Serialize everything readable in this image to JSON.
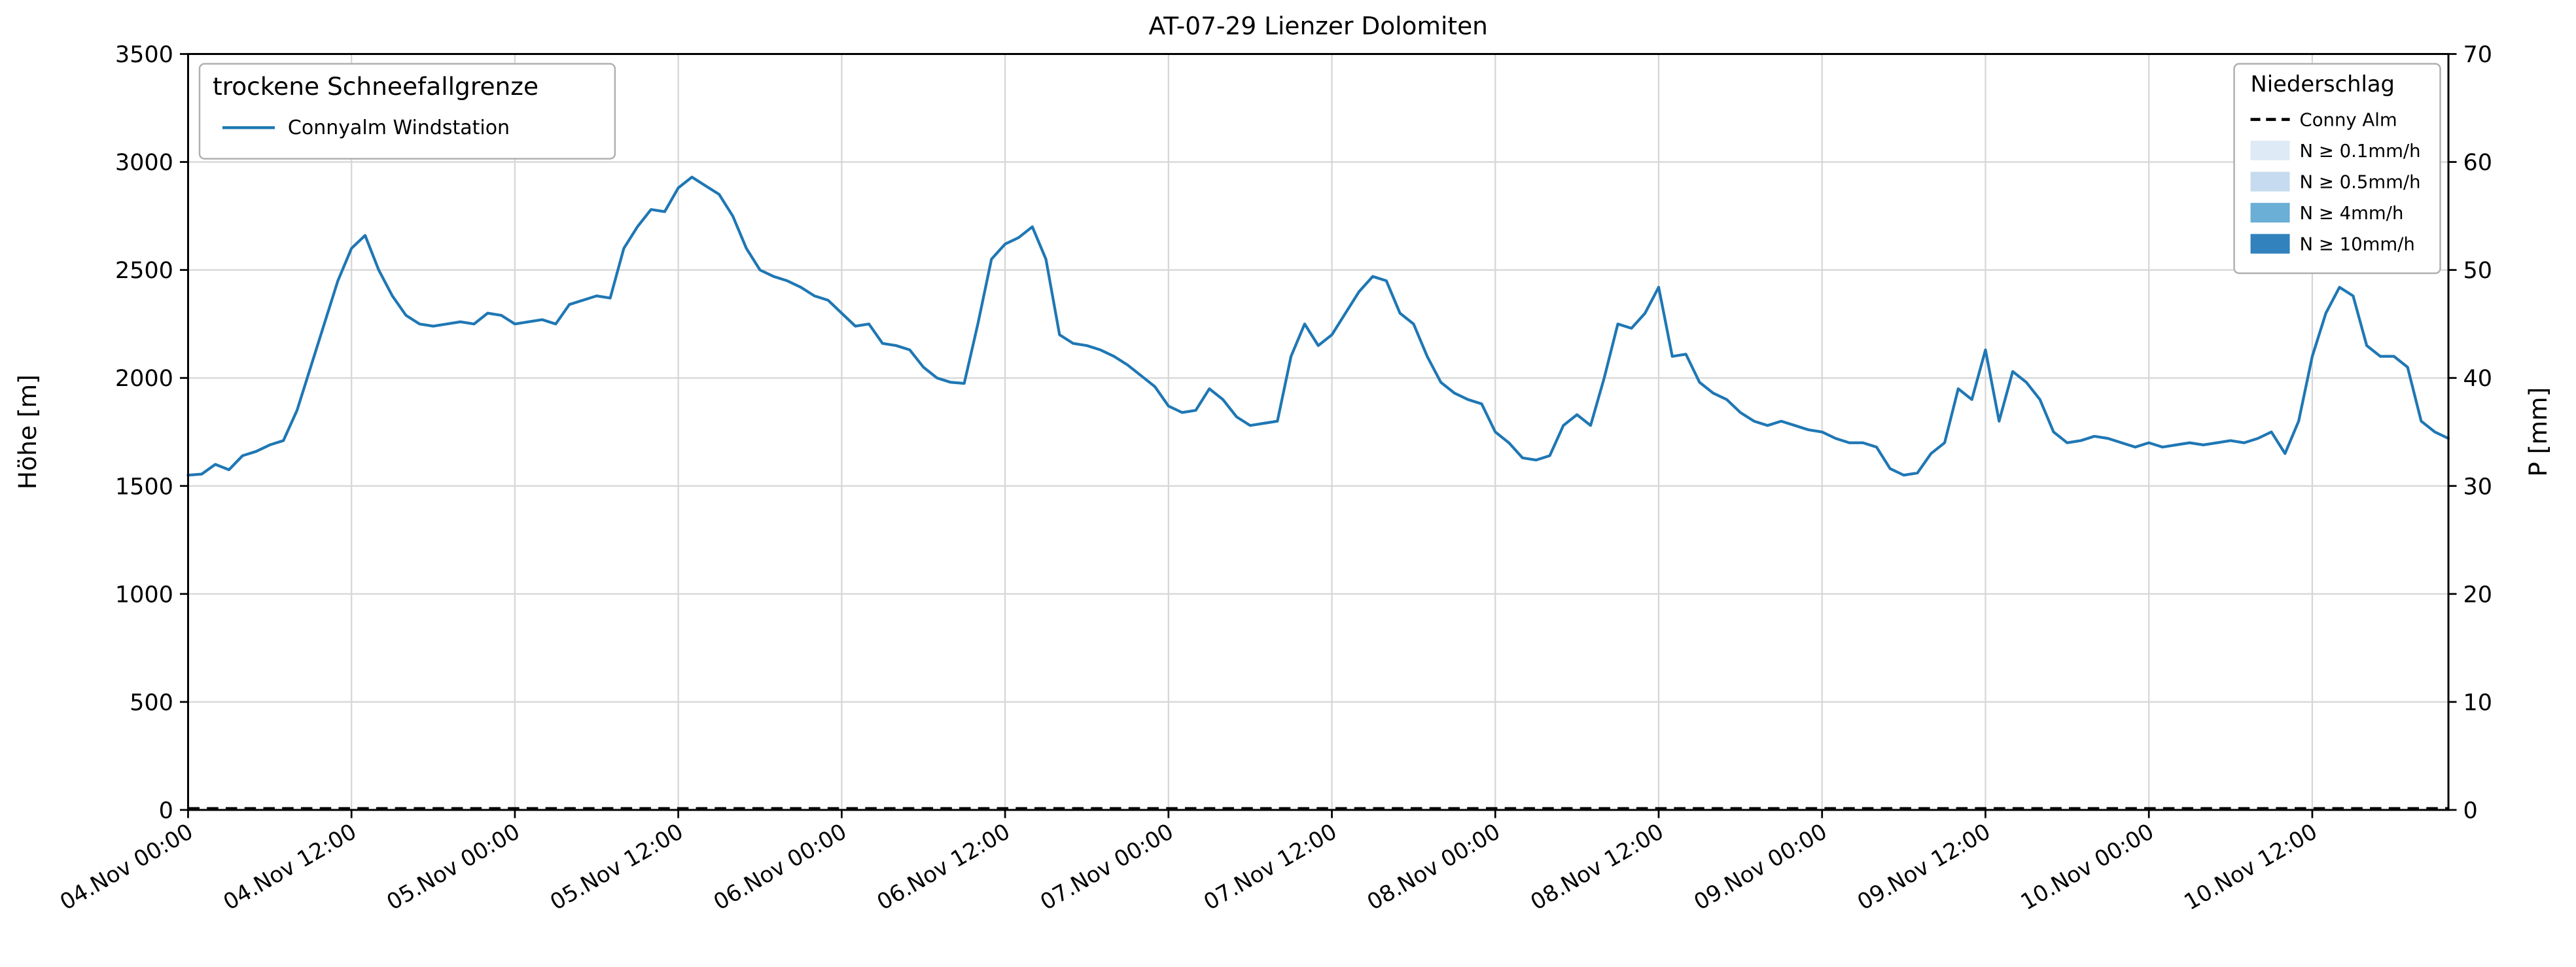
{
  "title": "AT-07-29 Lienzer Dolomiten",
  "axes": {
    "left_label": "Höhe [m]",
    "right_label": "P [mm]"
  },
  "legend_left": {
    "title": "trockene Schneefallgrenze",
    "entries": [
      {
        "label": "Connyalm Windstation",
        "style": "line",
        "color": "#1f77b4"
      }
    ]
  },
  "legend_right": {
    "title": "Niederschlag",
    "entries": [
      {
        "label": "Conny Alm",
        "style": "dashed-line",
        "color": "#000000"
      },
      {
        "label": "N ≥ 0.1mm/h",
        "style": "patch",
        "color": "#deebf7"
      },
      {
        "label": "N ≥ 0.5mm/h",
        "style": "patch",
        "color": "#c6dbef"
      },
      {
        "label": "N ≥ 4mm/h",
        "style": "patch",
        "color": "#6baed6"
      },
      {
        "label": "N ≥ 10mm/h",
        "style": "patch",
        "color": "#3182bd"
      }
    ]
  },
  "chart_data": {
    "type": "line",
    "title": "AT-07-29 Lienzer Dolomiten",
    "ylabel_left": "Höhe [m]",
    "ylabel_right": "P [mm]",
    "grid": true,
    "x_unit": "hours since 04.Nov 00:00",
    "xlim": [
      0,
      166
    ],
    "ylim_left": [
      0,
      3500
    ],
    "ylim_right": [
      0,
      70
    ],
    "left_ticks": [
      0,
      500,
      1000,
      1500,
      2000,
      2500,
      3000,
      3500
    ],
    "right_ticks": [
      0,
      10,
      20,
      30,
      40,
      50,
      60,
      70
    ],
    "x_tick_hours": [
      0,
      12,
      24,
      36,
      48,
      60,
      72,
      84,
      96,
      108,
      120,
      132,
      144,
      156
    ],
    "x_tick_labels": [
      "04.Nov 00:00",
      "04.Nov 12:00",
      "05.Nov 00:00",
      "05.Nov 12:00",
      "06.Nov 00:00",
      "06.Nov 12:00",
      "07.Nov 00:00",
      "07.Nov 12:00",
      "08.Nov 00:00",
      "08.Nov 12:00",
      "09.Nov 00:00",
      "09.Nov 12:00",
      "10.Nov 00:00",
      "10.Nov 12:00"
    ],
    "series": [
      {
        "name": "Connyalm Windstation",
        "axis": "left",
        "color": "#1f77b4",
        "x_start_hour": 0,
        "x_step_hours": 1,
        "values": [
          1550,
          1555,
          1600,
          1575,
          1640,
          1660,
          1690,
          1710,
          1850,
          2050,
          2250,
          2450,
          2600,
          2660,
          2500,
          2380,
          2290,
          2250,
          2240,
          2250,
          2260,
          2250,
          2300,
          2290,
          2250,
          2260,
          2270,
          2250,
          2340,
          2360,
          2380,
          2370,
          2600,
          2700,
          2780,
          2770,
          2880,
          2930,
          2890,
          2850,
          2750,
          2600,
          2500,
          2470,
          2450,
          2420,
          2380,
          2360,
          2300,
          2240,
          2250,
          2160,
          2150,
          2130,
          2050,
          2000,
          1980,
          1975,
          2250,
          2550,
          2620,
          2650,
          2700,
          2550,
          2200,
          2160,
          2150,
          2130,
          2100,
          2060,
          2010,
          1960,
          1870,
          1840,
          1850,
          1950,
          1900,
          1820,
          1780,
          1790,
          1800,
          2100,
          2250,
          2150,
          2200,
          2300,
          2400,
          2470,
          2450,
          2300,
          2250,
          2100,
          1980,
          1930,
          1900,
          1880,
          1750,
          1700,
          1630,
          1620,
          1640,
          1780,
          1830,
          1780,
          2000,
          2250,
          2230,
          2300,
          2420,
          2100,
          2110,
          1980,
          1930,
          1900,
          1840,
          1800,
          1780,
          1800,
          1780,
          1760,
          1750,
          1720,
          1700,
          1700,
          1680,
          1580,
          1550,
          1560,
          1650,
          1700,
          1950,
          1900,
          2130,
          1800,
          2030,
          1980,
          1900,
          1750,
          1700,
          1710,
          1730,
          1720,
          1700,
          1680,
          1700,
          1680,
          1690,
          1700,
          1690,
          1700,
          1710,
          1700,
          1720,
          1750,
          1650,
          1800,
          2100,
          2300,
          2420,
          2380,
          2150,
          2100,
          2100,
          2050,
          1800,
          1750,
          1720
        ]
      }
    ],
    "precipitation_series": [
      {
        "name": "Conny Alm",
        "axis": "right",
        "style": "dashed",
        "color": "#000000",
        "constant_value": 0
      }
    ]
  }
}
